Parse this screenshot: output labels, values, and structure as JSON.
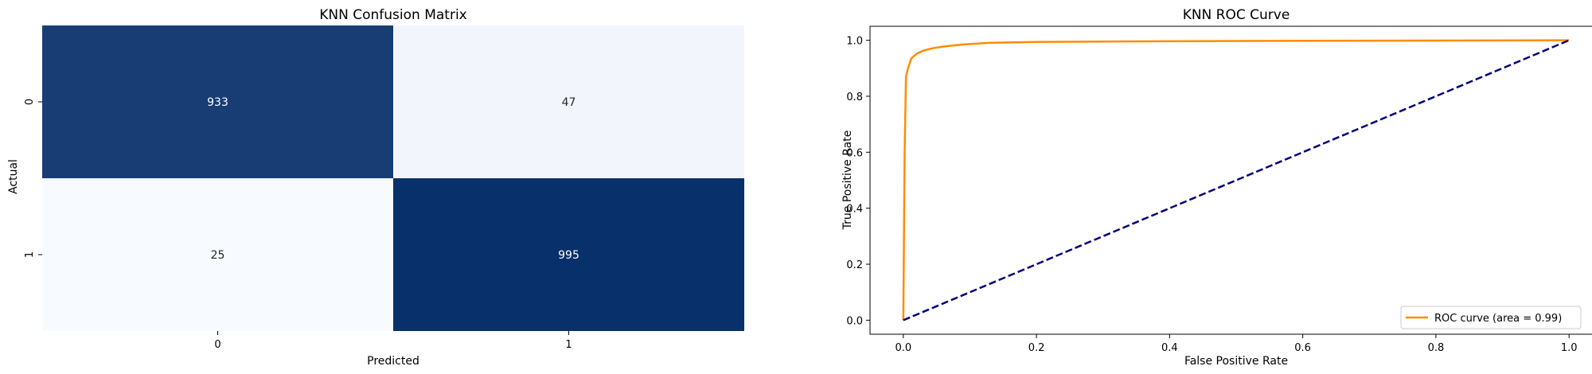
{
  "chart_data": [
    {
      "type": "heatmap",
      "title": "KNN Confusion Matrix",
      "xlabel": "Predicted",
      "ylabel": "Actual",
      "x_categories": [
        "0",
        "1"
      ],
      "y_categories": [
        "0",
        "1"
      ],
      "values": [
        [
          933,
          47
        ],
        [
          25,
          995
        ]
      ],
      "colormap": "Blues",
      "colors": {
        "low": "#f7fbff",
        "high": "#08306b"
      },
      "colorbar": false
    },
    {
      "type": "line",
      "title": "KNN ROC Curve",
      "xlabel": "False Positive Rate",
      "ylabel": "True Positive Rate",
      "xlim": [
        -0.05,
        1.05
      ],
      "ylim": [
        -0.05,
        1.05
      ],
      "x_ticks": [
        "0.0",
        "0.2",
        "0.4",
        "0.6",
        "0.8",
        "1.0"
      ],
      "y_ticks": [
        "0.0",
        "0.2",
        "0.4",
        "0.6",
        "0.8",
        "1.0"
      ],
      "legend_position": "lower-right",
      "series": [
        {
          "name": "ROC curve (area = 0.99)",
          "color": "#ff8c00",
          "style": "solid",
          "x": [
            0.0,
            0.002,
            0.004,
            0.007,
            0.012,
            0.02,
            0.03,
            0.045,
            0.065,
            0.09,
            0.13,
            0.2,
            0.35,
            0.6,
            0.8,
            1.0
          ],
          "y": [
            0.0,
            0.6,
            0.87,
            0.9,
            0.935,
            0.952,
            0.963,
            0.972,
            0.979,
            0.985,
            0.991,
            0.994,
            0.996,
            0.998,
            0.999,
            1.0
          ]
        },
        {
          "color": "#000080",
          "style": "dashed",
          "x": [
            0.0,
            1.0
          ],
          "y": [
            0.0,
            1.0
          ]
        }
      ]
    }
  ]
}
